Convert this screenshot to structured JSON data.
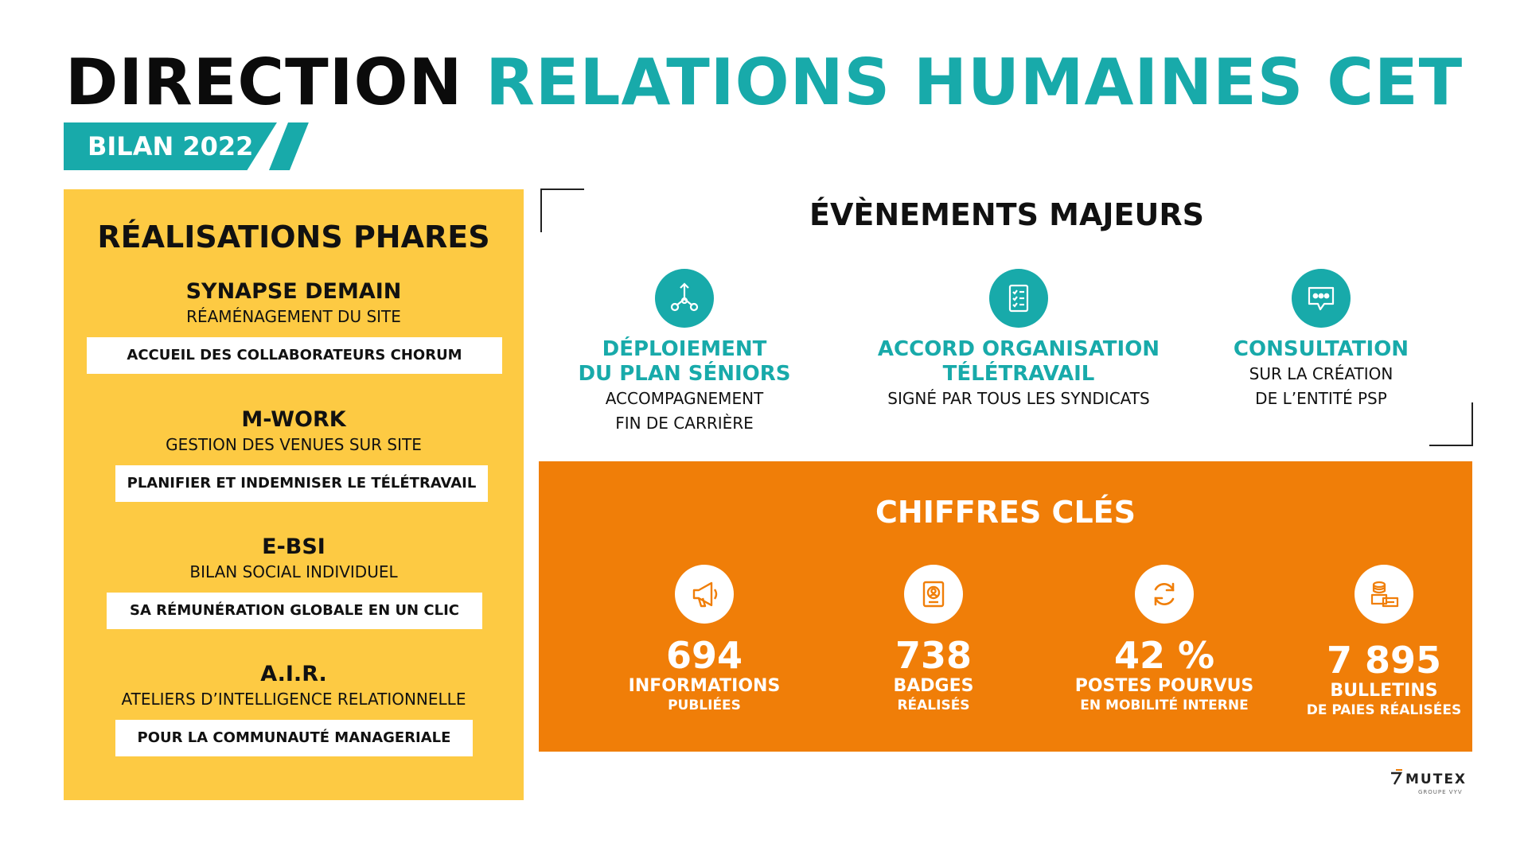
{
  "header": {
    "title_part1": "DIRECTION",
    "title_part2": "RELATIONS HUMAINES CET",
    "subtitle": "BILAN 2022"
  },
  "colors": {
    "teal": "#18aaaa",
    "yellow": "#fdca43",
    "orange": "#f07e08",
    "dark": "#0b0b0b"
  },
  "realisations": {
    "title": "RÉALISATIONS PHARES",
    "items": [
      {
        "name": "SYNAPSE DEMAIN",
        "desc": "RÉAMÉNAGEMENT DU SITE",
        "box": "ACCUEIL DES COLLABORATEURS CHORUM"
      },
      {
        "name": "M-WORK",
        "desc": "GESTION DES VENUES SUR SITE",
        "box": "PLANIFIER ET INDEMNISER LE TÉLÉTRAVAIL"
      },
      {
        "name": "E-BSI",
        "desc": "BILAN SOCIAL INDIVIDUEL",
        "box": "SA RÉMUNÉRATION GLOBALE EN UN CLIC"
      },
      {
        "name": "A.I.R.",
        "desc": "ATELIERS D’INTELLIGENCE RELATIONNELLE",
        "box": "POUR LA COMMUNAUTÉ MANAGERIALE"
      }
    ]
  },
  "evenements": {
    "title": "ÉVÈNEMENTS MAJEURS",
    "items": [
      {
        "icon": "network-icon",
        "name_line1": "DÉPLOIEMENT",
        "name_line2": "DU PLAN SÉNIORS",
        "desc_line1": "ACCOMPAGNEMENT",
        "desc_line2": "FIN DE CARRIÈRE"
      },
      {
        "icon": "checklist-icon",
        "name_line1": "ACCORD ORGANISATION",
        "name_line2": "TÉLÉTRAVAIL",
        "desc_line1": "SIGNÉ PAR TOUS LES SYNDICATS",
        "desc_line2": ""
      },
      {
        "icon": "chat-bubble-icon",
        "name_line1": "CONSULTATION",
        "name_line2": "",
        "desc_line1": "SUR LA CRÉATION",
        "desc_line2": "DE L’ENTITÉ PSP"
      }
    ]
  },
  "chiffres": {
    "title": "CHIFFRES CLÉS",
    "items": [
      {
        "icon": "megaphone-icon",
        "value": "694",
        "label": "INFORMATIONS",
        "sub": "PUBLIÉES"
      },
      {
        "icon": "badge-icon",
        "value": "738",
        "label": "BADGES",
        "sub": "RÉALISÉS"
      },
      {
        "icon": "refresh-icon",
        "value": "42 %",
        "label": "POSTES POURVUS",
        "sub": "EN MOBILITÉ INTERNE"
      },
      {
        "icon": "money-stack-icon",
        "value": "7 895",
        "label": "BULLETINS",
        "sub": "DE PAIES RÉALISÉES"
      }
    ]
  },
  "logo": {
    "name": "MUTEX",
    "sub": "GROUPE VYV"
  }
}
